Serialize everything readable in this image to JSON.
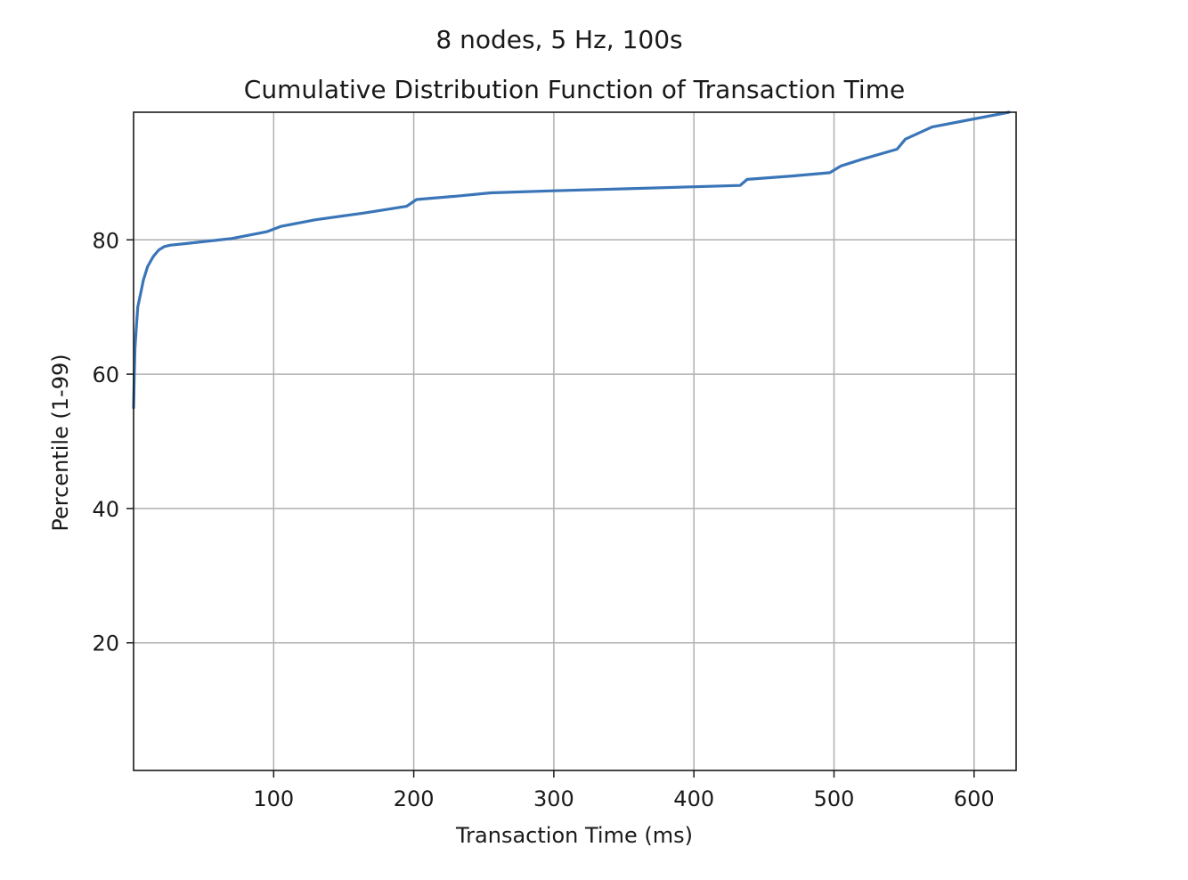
{
  "chart_data": {
    "type": "line",
    "suptitle": "8 nodes, 5 Hz, 100s",
    "title": "Cumulative Distribution Function of Transaction Time",
    "xlabel": "Transaction Time (ms)",
    "ylabel": "Percentile (1-99)",
    "xlim": [
      0,
      630
    ],
    "ylim": [
      1,
      99
    ],
    "xticks": [
      100,
      200,
      300,
      400,
      500,
      600
    ],
    "yticks": [
      20,
      40,
      60,
      80
    ],
    "grid": true,
    "color": "#3a75b8",
    "series": [
      {
        "x": [
          0,
          0.5,
          1,
          2,
          3,
          5,
          7,
          10,
          14,
          18,
          22,
          26,
          40,
          70,
          95,
          105,
          130,
          165,
          195,
          202,
          230,
          255,
          300,
          350,
          400,
          433,
          438,
          470,
          497,
          505,
          520,
          545,
          551,
          570,
          600,
          625
        ],
        "y": [
          55,
          60,
          64,
          67,
          70,
          72,
          74,
          76,
          77.5,
          78.5,
          79,
          79.2,
          79.5,
          80.2,
          81.2,
          82,
          83,
          84,
          85,
          86,
          86.5,
          87,
          87.3,
          87.6,
          87.9,
          88.1,
          89,
          89.5,
          90,
          91,
          92,
          93.5,
          95,
          96.8,
          98,
          99
        ]
      }
    ]
  }
}
